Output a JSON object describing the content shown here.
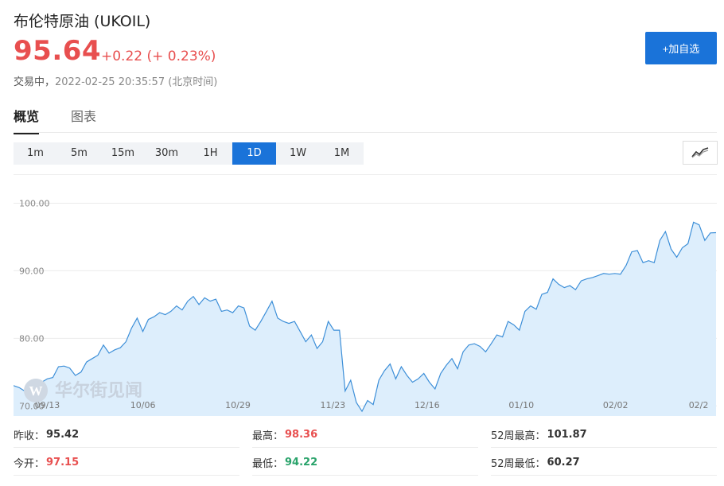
{
  "header": {
    "title": "布伦特原油  (UKOIL)",
    "price": "95.64",
    "change": "+0.22  (+ 0.23%)",
    "status": "交易中，",
    "timestamp": "2022-02-25 20:35:57  (北京时间)",
    "add_button": "+加自选"
  },
  "tabs": [
    {
      "label": "概览",
      "active": true
    },
    {
      "label": "图表",
      "active": false
    }
  ],
  "periods": [
    {
      "label": "1m",
      "active": false
    },
    {
      "label": "5m",
      "active": false
    },
    {
      "label": "15m",
      "active": false
    },
    {
      "label": "30m",
      "active": false
    },
    {
      "label": "1H",
      "active": false
    },
    {
      "label": "1D",
      "active": true
    },
    {
      "label": "1W",
      "active": false
    },
    {
      "label": "1M",
      "active": false
    }
  ],
  "chart_type_icon": "line-chart-icon",
  "watermark": "华尔街见闻",
  "colors": {
    "accent": "#1a73d9",
    "up": "#e84f4f",
    "down": "#2aa36b",
    "line": "#3d8fd8",
    "area": "#ddeefc"
  },
  "chart_data": {
    "type": "area",
    "x_ticks": [
      "09/13",
      "10/06",
      "10/29",
      "11/23",
      "12/16",
      "01/10",
      "02/02",
      "02/2"
    ],
    "y_ticks": [
      "70.00",
      "80.00",
      "90.00",
      "100.00"
    ],
    "ylim": [
      68.5,
      103
    ],
    "grid": true,
    "series": [
      {
        "values": [
          73.0,
          72.7,
          72.2,
          73.0,
          71.8,
          73.5,
          74.0,
          74.2,
          75.8,
          75.9,
          75.6,
          74.5,
          75.0,
          76.5,
          77.0,
          77.5,
          79.0,
          77.8,
          78.3,
          78.6,
          79.5,
          81.5,
          83.0,
          81.0,
          82.8,
          83.2,
          83.8,
          83.5,
          84.0,
          84.8,
          84.2,
          85.5,
          86.2,
          85.0,
          86.0,
          85.5,
          85.8,
          84.0,
          84.2,
          83.8,
          84.8,
          84.5,
          81.8,
          81.2,
          82.5,
          84.0,
          85.5,
          83.0,
          82.5,
          82.2,
          82.5,
          81.0,
          79.5,
          80.5,
          78.5,
          79.5,
          82.5,
          81.2,
          81.2,
          72.2,
          73.8,
          70.5,
          69.2,
          70.8,
          70.2,
          73.8,
          75.2,
          76.2,
          74.0,
          75.8,
          74.5,
          73.5,
          74.0,
          74.8,
          73.5,
          72.5,
          74.8,
          76.0,
          77.0,
          75.5,
          78.0,
          79.0,
          79.2,
          78.8,
          78.0,
          79.2,
          80.5,
          80.2,
          82.5,
          82.0,
          81.2,
          84.0,
          84.8,
          84.3,
          86.5,
          86.8,
          88.8,
          88.0,
          87.5,
          87.8,
          87.2,
          88.5,
          88.8,
          89.0,
          89.3,
          89.6,
          89.5,
          89.6,
          89.5,
          90.8,
          92.8,
          93.0,
          91.2,
          91.5,
          91.2,
          94.5,
          95.8,
          93.2,
          92.0,
          93.4,
          94.0,
          97.2,
          96.8,
          94.5,
          95.6,
          95.64
        ]
      }
    ]
  },
  "stats": {
    "prev_close_label": "昨收：",
    "prev_close": "95.42",
    "open_label": "今开：",
    "open": "97.15",
    "high_label": "最高：",
    "high": "98.36",
    "low_label": "最低：",
    "low": "94.22",
    "high52_label": "52周最高：",
    "high52": "101.87",
    "low52_label": "52周最低：",
    "low52": "60.27"
  }
}
